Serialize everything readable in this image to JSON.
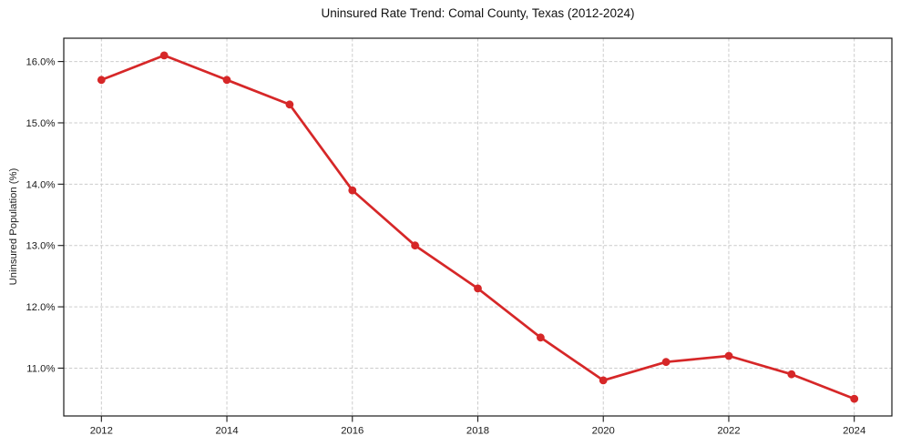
{
  "chart_data": {
    "type": "line",
    "title": "Uninsured Rate Trend: Comal County, Texas (2012-2024)",
    "xlabel": "",
    "ylabel": "Uninsured Population (%)",
    "x": [
      2012,
      2013,
      2014,
      2015,
      2016,
      2017,
      2018,
      2019,
      2020,
      2021,
      2022,
      2023,
      2024
    ],
    "values": [
      15.7,
      16.1,
      15.7,
      15.3,
      13.9,
      13.0,
      12.3,
      11.5,
      10.8,
      11.1,
      11.2,
      10.9,
      10.5
    ],
    "x_ticks": [
      2012,
      2014,
      2016,
      2018,
      2020,
      2022,
      2024
    ],
    "y_ticks": [
      11.0,
      12.0,
      13.0,
      14.0,
      15.0,
      16.0
    ],
    "y_tick_suffix": "%",
    "xlim": [
      2011.4,
      2024.6
    ],
    "ylim": [
      10.22,
      16.38
    ],
    "line_color": "#d62728",
    "marker": "circle",
    "marker_color": "#d62728",
    "grid": "dashed",
    "grid_color": "#cccccc",
    "frame_color": "#1a1a1a",
    "legend_position": "none"
  }
}
